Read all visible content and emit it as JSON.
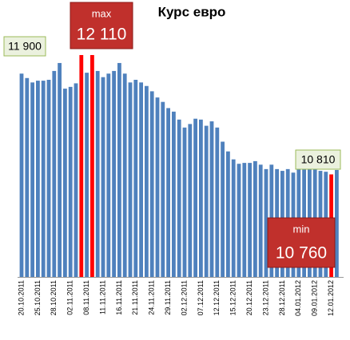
{
  "chart_data": {
    "type": "bar",
    "title": "Курс евро",
    "categories": [
      "20.10.2011",
      null,
      null,
      "25.10.2011",
      null,
      null,
      "28.10.2011",
      null,
      null,
      "02.11.2011",
      null,
      null,
      "08.11.2011",
      null,
      null,
      "11.11.2011",
      null,
      null,
      "16.11.2011",
      null,
      null,
      "21.11.2011",
      null,
      null,
      "24.11.2011",
      null,
      null,
      "29.11.2011",
      null,
      null,
      "02.12.2011",
      null,
      null,
      "07.12.2011",
      null,
      null,
      "12.12.2011",
      null,
      null,
      "15.12.2011",
      null,
      null,
      "20.12.2011",
      null,
      null,
      "23.12.2011",
      null,
      null,
      "28.12.2011",
      null,
      null,
      "04.01.2012",
      null,
      null,
      "09.01.2012",
      null,
      null,
      "12.01.2012",
      null
    ],
    "values": [
      11900,
      11850,
      11800,
      11820,
      11820,
      11830,
      11930,
      12020,
      11730,
      11750,
      11790,
      12110,
      11910,
      12110,
      11930,
      11860,
      11900,
      11930,
      12020,
      11900,
      11800,
      11830,
      11800,
      11760,
      11700,
      11630,
      11580,
      11510,
      11470,
      11380,
      11290,
      11330,
      11390,
      11380,
      11310,
      11360,
      11290,
      11130,
      11020,
      10930,
      10880,
      10890,
      10890,
      10910,
      10870,
      10820,
      10870,
      10820,
      10800,
      10820,
      10780,
      10880,
      10960,
      10900,
      10820,
      10800,
      10790,
      10760,
      10810
    ],
    "value_labels": [
      "11 900",
      null,
      null,
      null,
      null,
      null,
      null,
      null,
      null,
      null,
      null,
      "12 110",
      null,
      null,
      null,
      null,
      null,
      null,
      null,
      null,
      null,
      null,
      null,
      null,
      null,
      null,
      null,
      null,
      null,
      null,
      null,
      null,
      null,
      null,
      null,
      null,
      null,
      null,
      null,
      null,
      null,
      null,
      null,
      null,
      null,
      null,
      null,
      null,
      null,
      null,
      null,
      null,
      null,
      null,
      null,
      null,
      null,
      "10 760",
      "10 810"
    ],
    "value_captions": [
      null,
      null,
      null,
      null,
      null,
      null,
      null,
      null,
      null,
      null,
      null,
      "max",
      null,
      null,
      null,
      null,
      null,
      null,
      null,
      null,
      null,
      null,
      null,
      null,
      null,
      null,
      null,
      null,
      null,
      null,
      null,
      null,
      null,
      null,
      null,
      null,
      null,
      null,
      null,
      null,
      null,
      null,
      null,
      null,
      null,
      null,
      null,
      null,
      null,
      null,
      null,
      null,
      null,
      null,
      null,
      null,
      null,
      "min",
      null
    ],
    "colors": [
      "#4f81bd",
      "#4f81bd",
      "#4f81bd",
      "#4f81bd",
      "#4f81bd",
      "#4f81bd",
      "#4f81bd",
      "#4f81bd",
      "#4f81bd",
      "#4f81bd",
      "#4f81bd",
      "#ff0000",
      "#4f81bd",
      "#ff0000",
      "#4f81bd",
      "#4f81bd",
      "#4f81bd",
      "#4f81bd",
      "#4f81bd",
      "#4f81bd",
      "#4f81bd",
      "#4f81bd",
      "#4f81bd",
      "#4f81bd",
      "#4f81bd",
      "#4f81bd",
      "#4f81bd",
      "#4f81bd",
      "#4f81bd",
      "#4f81bd",
      "#4f81bd",
      "#4f81bd",
      "#4f81bd",
      "#4f81bd",
      "#4f81bd",
      "#4f81bd",
      "#4f81bd",
      "#4f81bd",
      "#4f81bd",
      "#4f81bd",
      "#4f81bd",
      "#4f81bd",
      "#4f81bd",
      "#4f81bd",
      "#4f81bd",
      "#4f81bd",
      "#4f81bd",
      "#4f81bd",
      "#4f81bd",
      "#4f81bd",
      "#4f81bd",
      "#4f81bd",
      "#4f81bd",
      "#4f81bd",
      "#4f81bd",
      "#4f81bd",
      "#4f81bd",
      "#ff0000",
      "#4f81bd"
    ],
    "ylim": [
      9600,
      12200
    ]
  }
}
